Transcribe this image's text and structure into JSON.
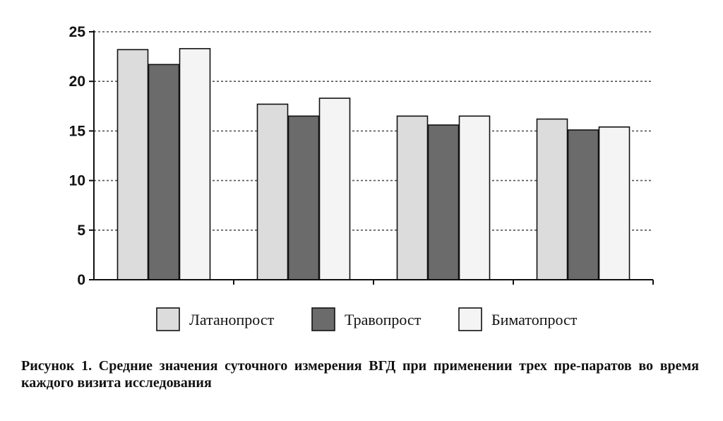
{
  "chart_data": {
    "type": "bar",
    "categories": [
      "",
      "",
      "",
      ""
    ],
    "series": [
      {
        "name": "Латанопрост",
        "values": [
          23.2,
          17.7,
          16.5,
          16.2
        ],
        "color": "#dcdcdc"
      },
      {
        "name": "Травопрост",
        "values": [
          21.7,
          16.5,
          15.6,
          15.1
        ],
        "color": "#6b6b6b"
      },
      {
        "name": "Биматопрост",
        "values": [
          23.3,
          18.3,
          16.5,
          15.4
        ],
        "color": "#f4f4f4"
      }
    ],
    "yticks": [
      0,
      5,
      10,
      15,
      20,
      25
    ],
    "ylim": [
      0,
      25
    ],
    "grid": true,
    "grid_style": "dashed",
    "legend_position": "bottom-center",
    "title": "",
    "xlabel": "",
    "ylabel": ""
  },
  "caption": "Рисунок 1. Средние значения суточного измерения ВГД при применении трех пре-паратов во время каждого визита исследования"
}
